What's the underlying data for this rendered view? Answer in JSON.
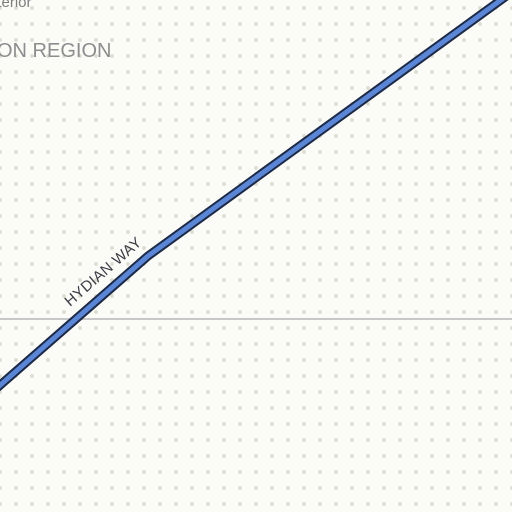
{
  "map": {
    "region_partial_label": "iterior",
    "region_label": "ON REGION",
    "road": {
      "name": "HYDIAN WAY",
      "fill_color": "#5b86d6",
      "casing_color": "#1c2a48"
    },
    "boundary_color": "#c8c8c8",
    "background_color": "#fbfbf8",
    "dot_color": "#dcdccf"
  }
}
